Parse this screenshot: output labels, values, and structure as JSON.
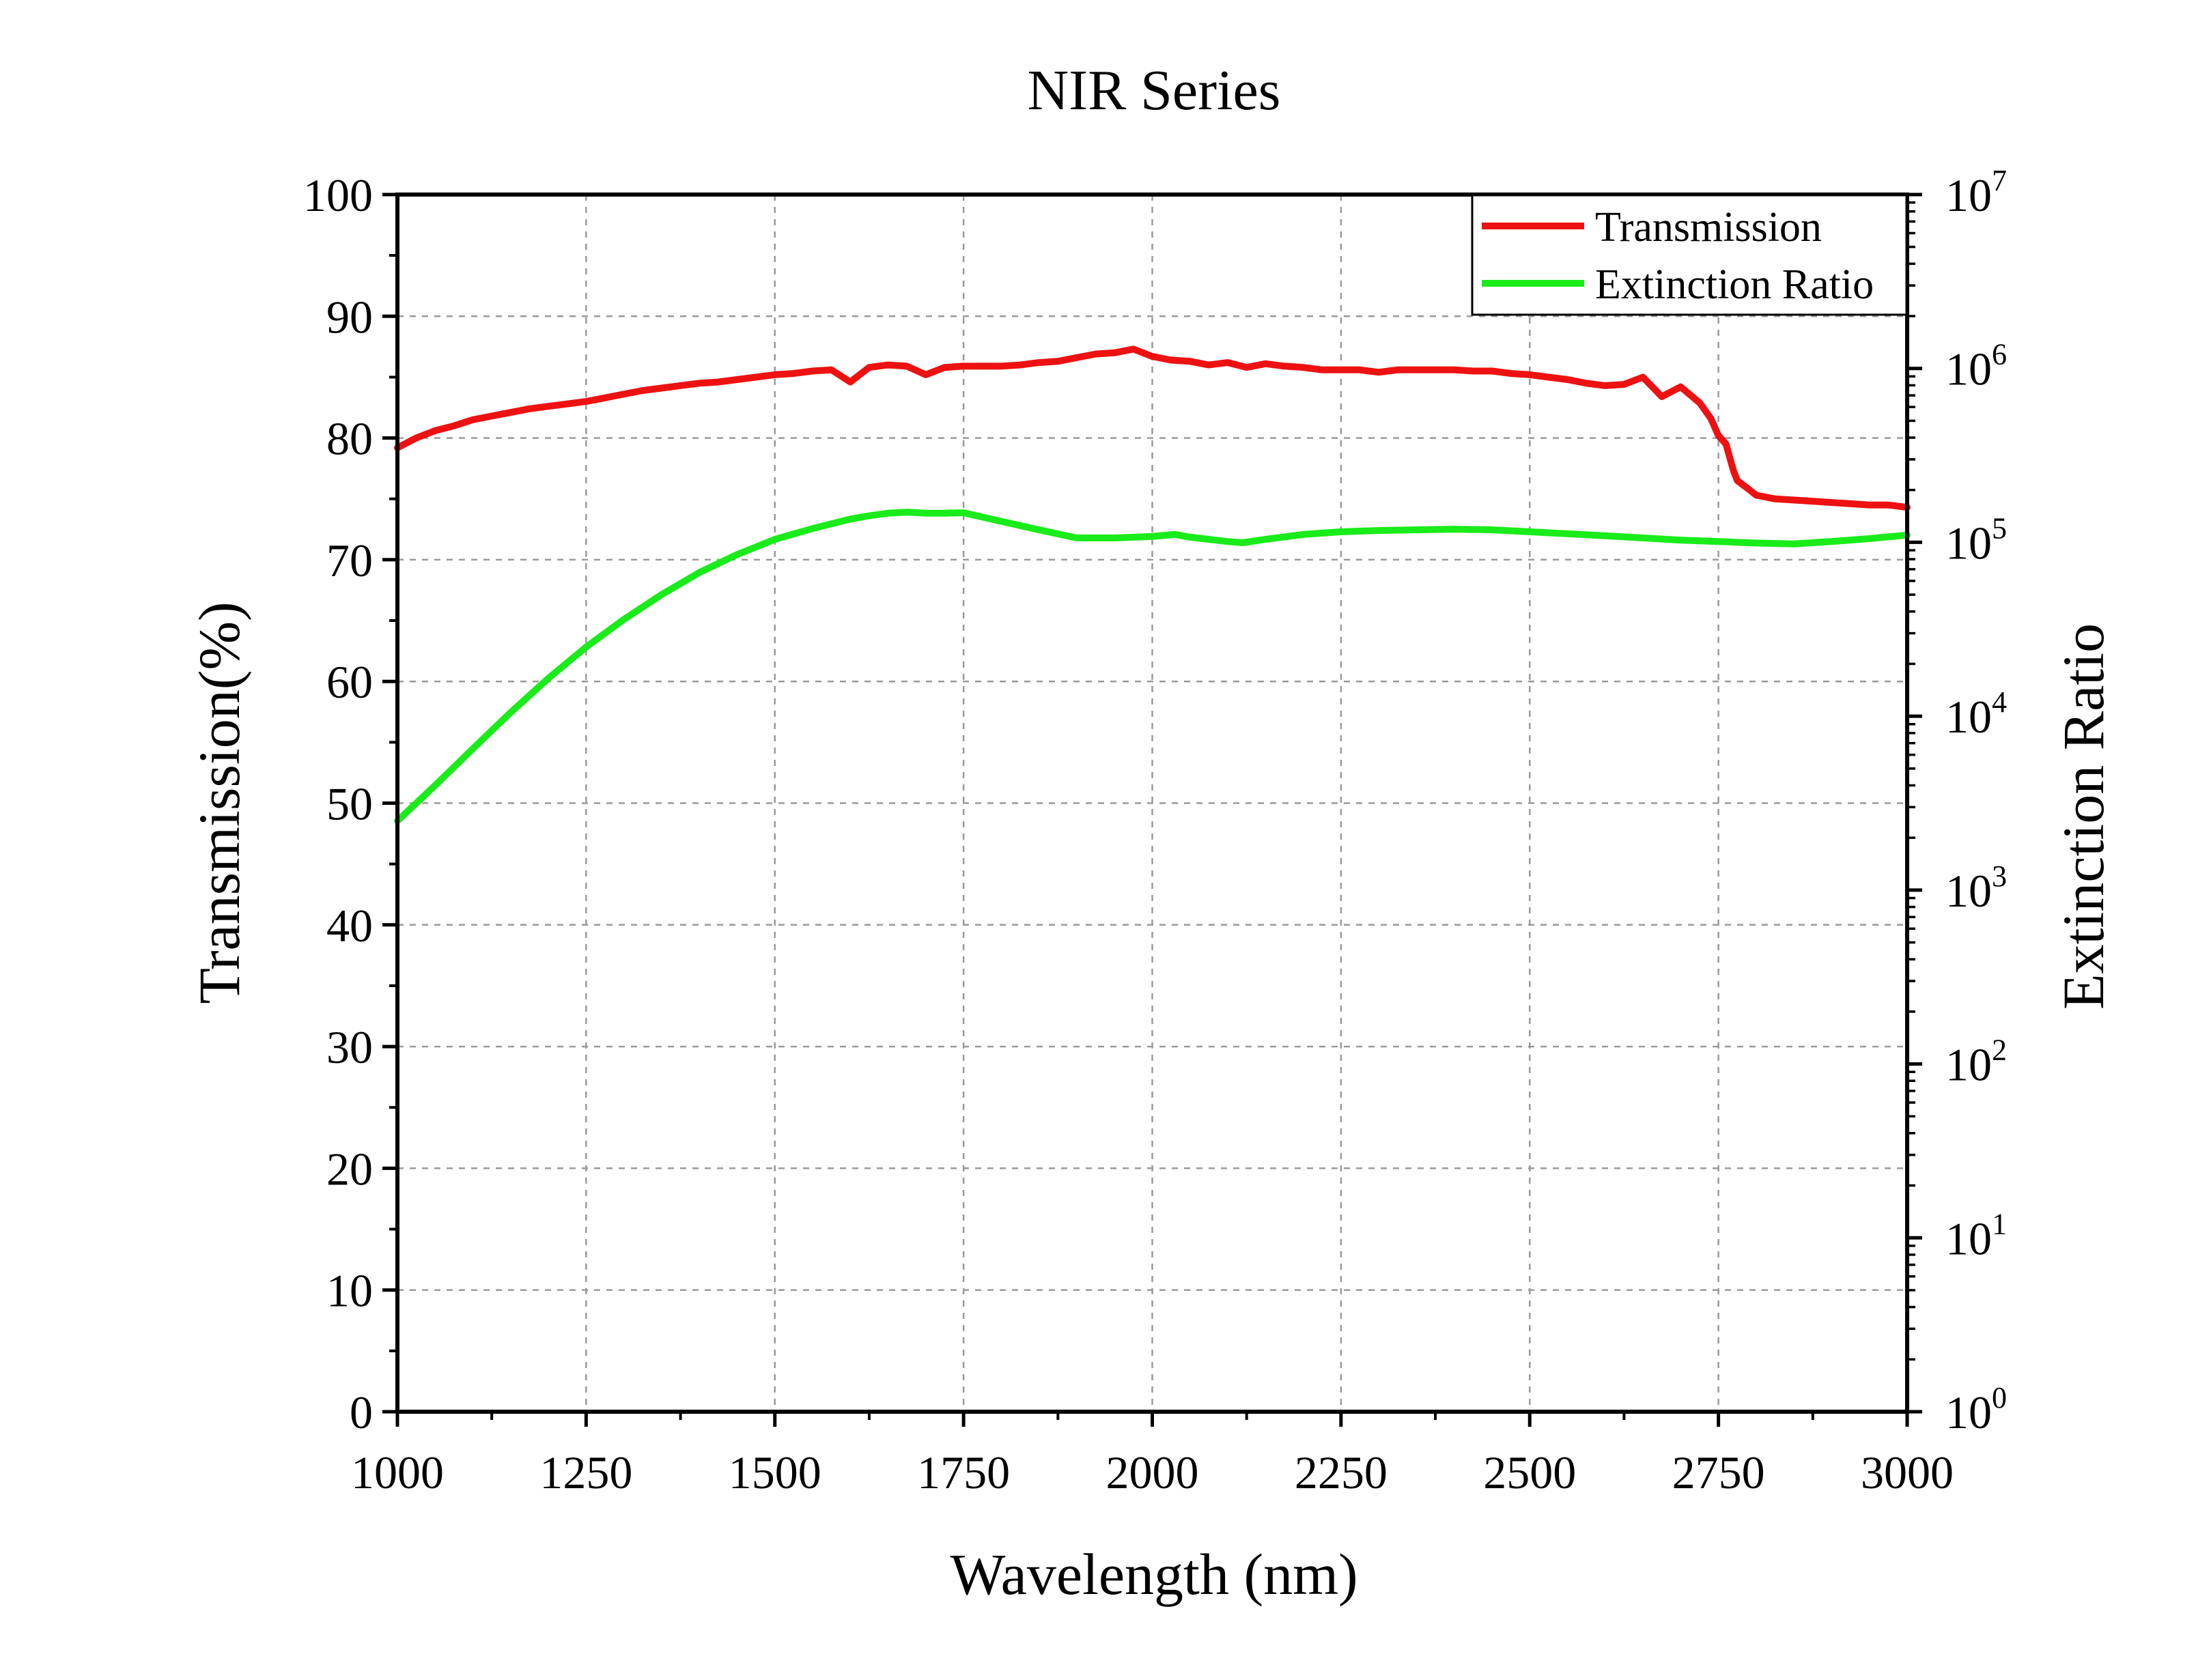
{
  "chart_data": {
    "type": "line",
    "title": "NIR Series",
    "xlabel": "Wavelength (nm)",
    "ylabel": "Transmission(%)",
    "y2label": "Extinction Ratio",
    "xlim": [
      1000,
      3000
    ],
    "ylim": [
      0,
      100
    ],
    "y2lim": [
      1,
      10000000
    ],
    "y2scale": "log",
    "grid": true,
    "legend_position": "top-right",
    "x_ticks": [
      "1000",
      "1250",
      "1500",
      "1750",
      "2000",
      "2250",
      "2500",
      "2750",
      "3000"
    ],
    "y_ticks": [
      "0",
      "10",
      "20",
      "30",
      "40",
      "50",
      "60",
      "70",
      "80",
      "90",
      "100"
    ],
    "y2_ticks": [
      {
        "base": "10",
        "exp": "0"
      },
      {
        "base": "10",
        "exp": "1"
      },
      {
        "base": "10",
        "exp": "2"
      },
      {
        "base": "10",
        "exp": "3"
      },
      {
        "base": "10",
        "exp": "4"
      },
      {
        "base": "10",
        "exp": "5"
      },
      {
        "base": "10",
        "exp": "6"
      },
      {
        "base": "10",
        "exp": "7"
      }
    ],
    "series": [
      {
        "name": "Transmission",
        "color": "#ee1111",
        "axis": "left",
        "x": [
          1000,
          1025,
          1050,
          1075,
          1100,
          1125,
          1150,
          1175,
          1200,
          1225,
          1250,
          1275,
          1300,
          1325,
          1350,
          1375,
          1400,
          1425,
          1450,
          1475,
          1500,
          1525,
          1550,
          1575,
          1600,
          1625,
          1650,
          1675,
          1700,
          1725,
          1750,
          1775,
          1800,
          1825,
          1850,
          1875,
          1900,
          1925,
          1950,
          1975,
          2000,
          2025,
          2050,
          2075,
          2100,
          2125,
          2150,
          2175,
          2200,
          2225,
          2250,
          2275,
          2300,
          2325,
          2350,
          2375,
          2400,
          2425,
          2450,
          2475,
          2500,
          2525,
          2550,
          2575,
          2600,
          2625,
          2650,
          2675,
          2700,
          2725,
          2740,
          2750,
          2760,
          2770,
          2775,
          2790,
          2800,
          2825,
          2850,
          2875,
          2900,
          2925,
          2950,
          2975,
          3000
        ],
        "values": [
          79.2,
          80.0,
          80.6,
          81.0,
          81.5,
          81.8,
          82.1,
          82.4,
          82.6,
          82.8,
          83.0,
          83.3,
          83.6,
          83.9,
          84.1,
          84.3,
          84.5,
          84.6,
          84.8,
          85.0,
          85.2,
          85.3,
          85.5,
          85.6,
          84.6,
          85.8,
          86.0,
          85.9,
          85.2,
          85.8,
          85.9,
          85.9,
          85.9,
          86.0,
          86.2,
          86.3,
          86.6,
          86.9,
          87.0,
          87.3,
          86.7,
          86.4,
          86.3,
          86.0,
          86.2,
          85.8,
          86.1,
          85.9,
          85.8,
          85.6,
          85.6,
          85.6,
          85.4,
          85.6,
          85.6,
          85.6,
          85.6,
          85.5,
          85.5,
          85.3,
          85.2,
          85.0,
          84.8,
          84.5,
          84.3,
          84.4,
          85.0,
          83.4,
          84.2,
          82.9,
          81.6,
          80.2,
          79.5,
          77.3,
          76.5,
          75.8,
          75.3,
          75.0,
          74.9,
          74.8,
          74.7,
          74.6,
          74.5,
          74.5,
          74.3
        ]
      },
      {
        "name": "Extinction Ratio",
        "color": "#1aeb1a",
        "axis": "right",
        "x": [
          1000,
          1050,
          1100,
          1150,
          1200,
          1250,
          1300,
          1350,
          1400,
          1450,
          1500,
          1550,
          1600,
          1625,
          1650,
          1675,
          1700,
          1725,
          1750,
          1800,
          1850,
          1900,
          1950,
          2000,
          2030,
          2050,
          2100,
          2120,
          2150,
          2200,
          2250,
          2300,
          2350,
          2400,
          2450,
          2500,
          2550,
          2600,
          2650,
          2700,
          2750,
          2800,
          2850,
          2900,
          2950,
          3000
        ],
        "values": [
          2500,
          4000,
          6500,
          10500,
          16500,
          25000,
          36000,
          50000,
          67000,
          85000,
          104000,
          120000,
          136000,
          142000,
          147000,
          149000,
          147000,
          147000,
          148000,
          132000,
          118000,
          106000,
          106000,
          108000,
          111000,
          107000,
          101000,
          99500,
          104000,
          111000,
          115000,
          117000,
          118000,
          119000,
          118000,
          115000,
          112000,
          109000,
          106000,
          103000,
          101000,
          99000,
          98000,
          101000,
          105000,
          110000
        ]
      }
    ]
  }
}
